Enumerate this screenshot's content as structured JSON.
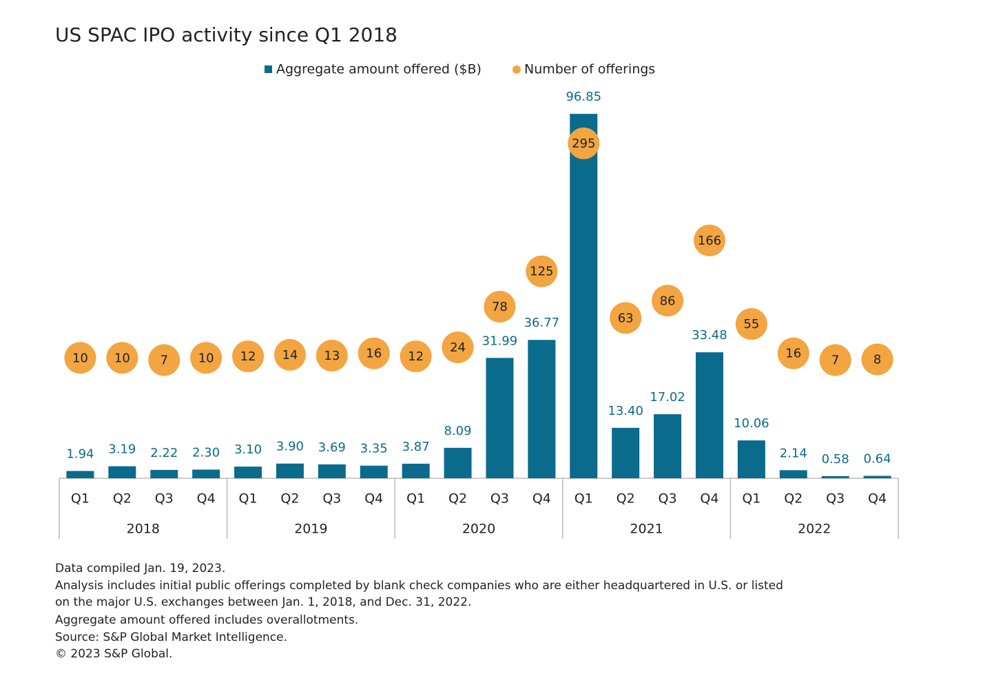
{
  "chart_data": {
    "type": "bar-dot",
    "title": "US SPAC IPO activity since Q1 2018",
    "categories": [
      "Q1",
      "Q2",
      "Q3",
      "Q4",
      "Q1",
      "Q2",
      "Q3",
      "Q4",
      "Q1",
      "Q2",
      "Q3",
      "Q4",
      "Q1",
      "Q2",
      "Q3",
      "Q4",
      "Q1",
      "Q2",
      "Q3",
      "Q4"
    ],
    "years": [
      "2018",
      "2019",
      "2020",
      "2021",
      "2022"
    ],
    "series": [
      {
        "name": "Aggregate amount offered ($B)",
        "color": "#0b6b8c",
        "kind": "bar",
        "values": [
          1.94,
          3.19,
          2.22,
          2.3,
          3.1,
          3.9,
          3.69,
          3.35,
          3.87,
          8.09,
          31.99,
          36.77,
          96.85,
          13.4,
          17.02,
          33.48,
          10.06,
          2.14,
          0.58,
          0.64
        ],
        "value_labels": [
          "1.94",
          "3.19",
          "2.22",
          "2.30",
          "3.10",
          "3.90",
          "3.69",
          "3.35",
          "3.87",
          "8.09",
          "31.99",
          "36.77",
          "96.85",
          "13.40",
          "17.02",
          "33.48",
          "10.06",
          "2.14",
          "0.58",
          "0.64"
        ]
      },
      {
        "name": "Number of offerings",
        "color": "#f2a541",
        "kind": "dot",
        "axis": "y2",
        "values": [
          10,
          10,
          7,
          10,
          12,
          14,
          13,
          16,
          12,
          24,
          78,
          125,
          295,
          63,
          86,
          166,
          55,
          16,
          7,
          8
        ]
      }
    ],
    "ylim": [
      0,
      100
    ],
    "y2lim": [
      -150,
      350
    ],
    "notes": [
      "Data compiled Jan. 19, 2023.",
      "Analysis includes initial public offerings completed by blank check companies who are either headquartered in U.S. or listed",
      "on the major U.S. exchanges between Jan. 1, 2018, and Dec. 31, 2022.",
      "Aggregate amount offered includes overallotments.",
      "Source: S&P Global Market Intelligence.",
      "© 2023 S&P Global."
    ]
  }
}
